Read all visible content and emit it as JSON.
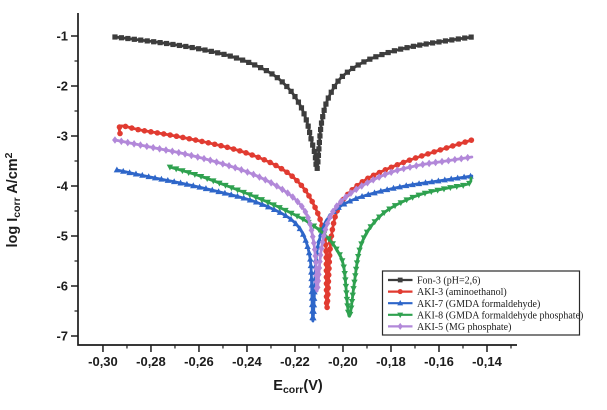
{
  "chart_data": {
    "type": "line",
    "title": "",
    "xlabel_text": "Ecorr(V)",
    "ylabel_text": "log Icorr A/cm2",
    "xlabel_parts": [
      {
        "t": "E"
      },
      {
        "t": "corr",
        "sub": true
      },
      {
        "t": "(V)"
      }
    ],
    "ylabel_parts": [
      {
        "t": "log I"
      },
      {
        "t": "corr",
        "sub": true
      },
      {
        "t": " A/cm"
      },
      {
        "t": "2",
        "sup": true
      }
    ],
    "grid": false,
    "x_axis": {
      "lim": [
        -0.3104,
        -0.1275
      ],
      "ticks": [
        {
          "v": -0.3,
          "label": "-0,30"
        },
        {
          "v": -0.28,
          "label": "-0,28"
        },
        {
          "v": -0.26,
          "label": "-0,26"
        },
        {
          "v": -0.24,
          "label": "-0,24"
        },
        {
          "v": -0.22,
          "label": "-0,22"
        },
        {
          "v": -0.2,
          "label": "-0,20"
        },
        {
          "v": -0.18,
          "label": "-0,18"
        },
        {
          "v": -0.16,
          "label": "-0,16"
        },
        {
          "v": -0.14,
          "label": "-0,14"
        }
      ],
      "minor_ticks": [
        -0.29,
        -0.27,
        -0.25,
        -0.23,
        -0.21,
        -0.19,
        -0.17,
        -0.15,
        -0.13
      ]
    },
    "y_axis": {
      "lim": [
        -7.18,
        -0.54
      ],
      "ticks": [
        {
          "v": -1,
          "label": "-1"
        },
        {
          "v": -2,
          "label": "-2"
        },
        {
          "v": -3,
          "label": "-3"
        },
        {
          "v": -4,
          "label": "-4"
        },
        {
          "v": -5,
          "label": "-5"
        },
        {
          "v": -6,
          "label": "-6"
        },
        {
          "v": -7,
          "label": "-7"
        }
      ],
      "minor_ticks": [
        -1.5,
        -2.5,
        -3.5,
        -4.5,
        -5.5,
        -6.5
      ]
    },
    "legend": {
      "position": "inside-bottom-right"
    },
    "series": [
      {
        "name": "Fon-3 (pH=2,6)",
        "color": "#3d3d3d",
        "marker": "square",
        "ecorr": -0.211,
        "points": [
          [
            -0.295,
            -1.02
          ],
          [
            -0.2846,
            -1.08
          ],
          [
            -0.2721,
            -1.16
          ],
          [
            -0.2596,
            -1.26
          ],
          [
            -0.2471,
            -1.4
          ],
          [
            -0.2367,
            -1.58
          ],
          [
            -0.2283,
            -1.8
          ],
          [
            -0.2221,
            -2.08
          ],
          [
            -0.2179,
            -2.38
          ],
          [
            -0.215,
            -2.72
          ],
          [
            -0.2133,
            -3.06
          ],
          [
            -0.2117,
            -3.36
          ],
          [
            -0.2108,
            -3.66
          ],
          [
            -0.2096,
            -3.0
          ],
          [
            -0.2088,
            -2.7
          ],
          [
            -0.2071,
            -2.36
          ],
          [
            -0.2046,
            -2.1
          ],
          [
            -0.2013,
            -1.86
          ],
          [
            -0.1963,
            -1.66
          ],
          [
            -0.1896,
            -1.48
          ],
          [
            -0.1804,
            -1.32
          ],
          [
            -0.17,
            -1.2
          ],
          [
            -0.1575,
            -1.1
          ],
          [
            -0.1463,
            -1.02
          ]
        ]
      },
      {
        "name": "AKI-3 (aminoethanol)",
        "color": "#e13b31",
        "marker": "circle",
        "ecorr": -0.207,
        "points": [
          [
            -0.2929,
            -2.95
          ],
          [
            -0.2925,
            -2.8
          ],
          [
            -0.2846,
            -2.88
          ],
          [
            -0.2721,
            -2.98
          ],
          [
            -0.2596,
            -3.1
          ],
          [
            -0.2471,
            -3.24
          ],
          [
            -0.2367,
            -3.4
          ],
          [
            -0.2283,
            -3.58
          ],
          [
            -0.2213,
            -3.8
          ],
          [
            -0.2158,
            -4.08
          ],
          [
            -0.2117,
            -4.42
          ],
          [
            -0.2088,
            -4.78
          ],
          [
            -0.2071,
            -5.24
          ],
          [
            -0.2067,
            -6.45
          ],
          [
            -0.2054,
            -5.28
          ],
          [
            -0.2038,
            -4.72
          ],
          [
            -0.2013,
            -4.38
          ],
          [
            -0.1971,
            -4.12
          ],
          [
            -0.1908,
            -3.88
          ],
          [
            -0.1825,
            -3.68
          ],
          [
            -0.1721,
            -3.48
          ],
          [
            -0.1596,
            -3.28
          ],
          [
            -0.1463,
            -3.08
          ]
        ]
      },
      {
        "name": "AKI-7 (GMDA formaldehyde)",
        "color": "#2e66c9",
        "marker": "triangle-up",
        "ecorr": -0.213,
        "points": [
          [
            -0.2942,
            -3.68
          ],
          [
            -0.2804,
            -3.82
          ],
          [
            -0.2658,
            -3.96
          ],
          [
            -0.2513,
            -4.12
          ],
          [
            -0.2388,
            -4.28
          ],
          [
            -0.2283,
            -4.48
          ],
          [
            -0.2213,
            -4.68
          ],
          [
            -0.2171,
            -4.92
          ],
          [
            -0.2146,
            -5.24
          ],
          [
            -0.2133,
            -5.64
          ],
          [
            -0.2125,
            -6.7
          ],
          [
            -0.2113,
            -5.52
          ],
          [
            -0.2096,
            -5.04
          ],
          [
            -0.2067,
            -4.68
          ],
          [
            -0.2021,
            -4.44
          ],
          [
            -0.195,
            -4.26
          ],
          [
            -0.1854,
            -4.12
          ],
          [
            -0.1742,
            -4.0
          ],
          [
            -0.1604,
            -3.9
          ],
          [
            -0.1463,
            -3.8
          ]
        ]
      },
      {
        "name": "AKI-8 (GMDA formaldehyde phosphate)",
        "color": "#2fa14f",
        "marker": "triangle-down",
        "ecorr": -0.198,
        "points": [
          [
            -0.2721,
            -3.62
          ],
          [
            -0.2596,
            -3.8
          ],
          [
            -0.2471,
            -4.02
          ],
          [
            -0.2354,
            -4.24
          ],
          [
            -0.2242,
            -4.48
          ],
          [
            -0.2146,
            -4.72
          ],
          [
            -0.2075,
            -4.98
          ],
          [
            -0.2025,
            -5.28
          ],
          [
            -0.1996,
            -5.64
          ],
          [
            -0.1975,
            -6.6
          ],
          [
            -0.1954,
            -5.98
          ],
          [
            -0.1938,
            -5.44
          ],
          [
            -0.1917,
            -5.08
          ],
          [
            -0.1879,
            -4.78
          ],
          [
            -0.1825,
            -4.52
          ],
          [
            -0.1754,
            -4.32
          ],
          [
            -0.1671,
            -4.16
          ],
          [
            -0.1563,
            -4.04
          ],
          [
            -0.1479,
            -3.96
          ],
          [
            -0.1466,
            -3.84
          ]
        ]
      },
      {
        "name": "AKI-5 (MG phosphate)",
        "color": "#b288d9",
        "marker": "diamond",
        "ecorr": -0.211,
        "points": [
          [
            -0.295,
            -3.08
          ],
          [
            -0.2804,
            -3.22
          ],
          [
            -0.2658,
            -3.36
          ],
          [
            -0.2513,
            -3.54
          ],
          [
            -0.2388,
            -3.74
          ],
          [
            -0.2283,
            -3.98
          ],
          [
            -0.22,
            -4.26
          ],
          [
            -0.215,
            -4.58
          ],
          [
            -0.2125,
            -5.04
          ],
          [
            -0.2113,
            -5.52
          ],
          [
            -0.2108,
            -6.1
          ],
          [
            -0.2092,
            -5.32
          ],
          [
            -0.2071,
            -4.84
          ],
          [
            -0.2038,
            -4.48
          ],
          [
            -0.1983,
            -4.2
          ],
          [
            -0.19,
            -3.94
          ],
          [
            -0.1796,
            -3.72
          ],
          [
            -0.1679,
            -3.58
          ],
          [
            -0.1571,
            -3.5
          ],
          [
            -0.1463,
            -3.42
          ]
        ]
      }
    ]
  }
}
